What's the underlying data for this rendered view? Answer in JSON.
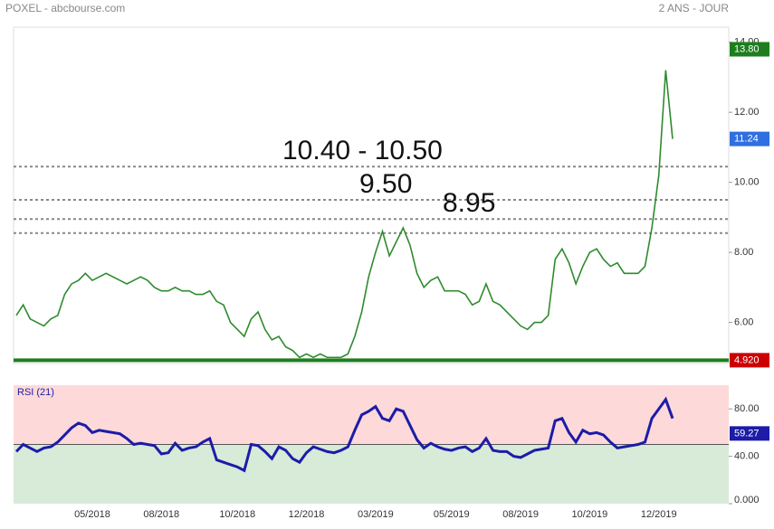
{
  "chart_data": [
    {
      "type": "line",
      "title": "POXEL - abcbourse.com",
      "subtitle": "2 ANS - JOUR",
      "categories": [
        null,
        null,
        null,
        null,
        null,
        null,
        null,
        null,
        null,
        null,
        null,
        "05/2018",
        null,
        null,
        null,
        null,
        null,
        null,
        null,
        null,
        null,
        "08/2018",
        null,
        null,
        null,
        null,
        null,
        null,
        null,
        null,
        null,
        null,
        "10/2018",
        null,
        null,
        null,
        null,
        null,
        null,
        null,
        null,
        null,
        "12/2018",
        null,
        null,
        null,
        null,
        null,
        null,
        null,
        null,
        null,
        "03/2019",
        null,
        null,
        null,
        null,
        null,
        null,
        null,
        null,
        null,
        null,
        "05/2019",
        null,
        null,
        null,
        null,
        null,
        null,
        null,
        null,
        null,
        "08/2019",
        null,
        null,
        null,
        null,
        null,
        null,
        null,
        null,
        null,
        "10/2019",
        null,
        null,
        null,
        null,
        null,
        null,
        null,
        null,
        null,
        "12/2019",
        null,
        null
      ],
      "series": [
        {
          "color": "#2e8b2e",
          "values": [
            6.2,
            6.5,
            6.1,
            6.0,
            5.9,
            6.1,
            6.2,
            6.8,
            7.1,
            7.2,
            7.4,
            7.2,
            7.3,
            7.4,
            7.3,
            7.2,
            7.1,
            7.2,
            7.3,
            7.2,
            7.0,
            6.9,
            6.9,
            7.0,
            6.9,
            6.9,
            6.8,
            6.8,
            6.9,
            6.6,
            6.5,
            6.0,
            5.8,
            5.6,
            6.1,
            6.3,
            5.8,
            5.5,
            5.6,
            5.3,
            5.2,
            5.0,
            5.1,
            5.0,
            5.1,
            5.0,
            5.0,
            5.0,
            5.1,
            5.6,
            6.3,
            7.3,
            8.0,
            8.6,
            7.9,
            8.3,
            8.7,
            8.2,
            7.4,
            7.0,
            7.2,
            7.3,
            6.9,
            6.9,
            6.9,
            6.8,
            6.5,
            6.6,
            7.1,
            6.6,
            6.5,
            6.3,
            6.1,
            5.9,
            5.8,
            6.0,
            6.0,
            6.2,
            7.8,
            8.1,
            7.7,
            7.1,
            7.6,
            8.0,
            8.1,
            7.8,
            7.6,
            7.7,
            7.4,
            7.4,
            7.4,
            7.6,
            8.7,
            10.2,
            13.2,
            11.24
          ]
        }
      ],
      "ylim": [
        4.8,
        14.2
      ],
      "yticks": [
        {
          "value": 6,
          "label": "6.00"
        },
        {
          "value": 8,
          "label": "8.00"
        },
        {
          "value": 10,
          "label": "10.00"
        },
        {
          "value": 12,
          "label": "12.00"
        },
        {
          "value": 14,
          "label": "14.00"
        }
      ],
      "levels": [
        {
          "value": 10.45,
          "label": "10.40 - 10.50"
        },
        {
          "value": 9.5,
          "label": "9.50"
        },
        {
          "value": 8.95,
          "label": "8.95"
        },
        {
          "value": 8.55
        }
      ],
      "support": {
        "value": 4.92,
        "label": "4.920",
        "color": "#1e7e1e"
      },
      "price_tags": [
        {
          "value": 13.8,
          "label": "13.80",
          "color": "#1e7e1e"
        },
        {
          "value": 11.24,
          "label": "11.24",
          "color": "#2f6fe0"
        }
      ]
    },
    {
      "type": "line",
      "title": "RSI (21)",
      "color": "#1c1ca8",
      "values": [
        44,
        50,
        47,
        44,
        47,
        48,
        52,
        58,
        64,
        68,
        66,
        60,
        62,
        61,
        60,
        59,
        55,
        50,
        51,
        50,
        49,
        42,
        43,
        51,
        45,
        47,
        48,
        52,
        55,
        37,
        35,
        33,
        31,
        28,
        50,
        49,
        44,
        38,
        48,
        45,
        38,
        35,
        43,
        48,
        46,
        44,
        43,
        45,
        48,
        62,
        75,
        78,
        82,
        72,
        70,
        80,
        78,
        66,
        54,
        47,
        51,
        48,
        46,
        45,
        47,
        48,
        44,
        47,
        55,
        45,
        44,
        44,
        40,
        39,
        42,
        45,
        46,
        47,
        70,
        72,
        60,
        52,
        62,
        59,
        60,
        58,
        52,
        47,
        48,
        49,
        50,
        52,
        72,
        80,
        88,
        72
      ],
      "ylim": [
        0,
        100
      ],
      "midline": 50,
      "yticks": [
        {
          "value": 0,
          "label": "0.000"
        },
        {
          "value": 40,
          "label": "40.00"
        },
        {
          "value": 80,
          "label": "80.00"
        }
      ],
      "tag": {
        "value": 59.27,
        "label": "59.27",
        "color": "#1c1ca8"
      }
    }
  ]
}
